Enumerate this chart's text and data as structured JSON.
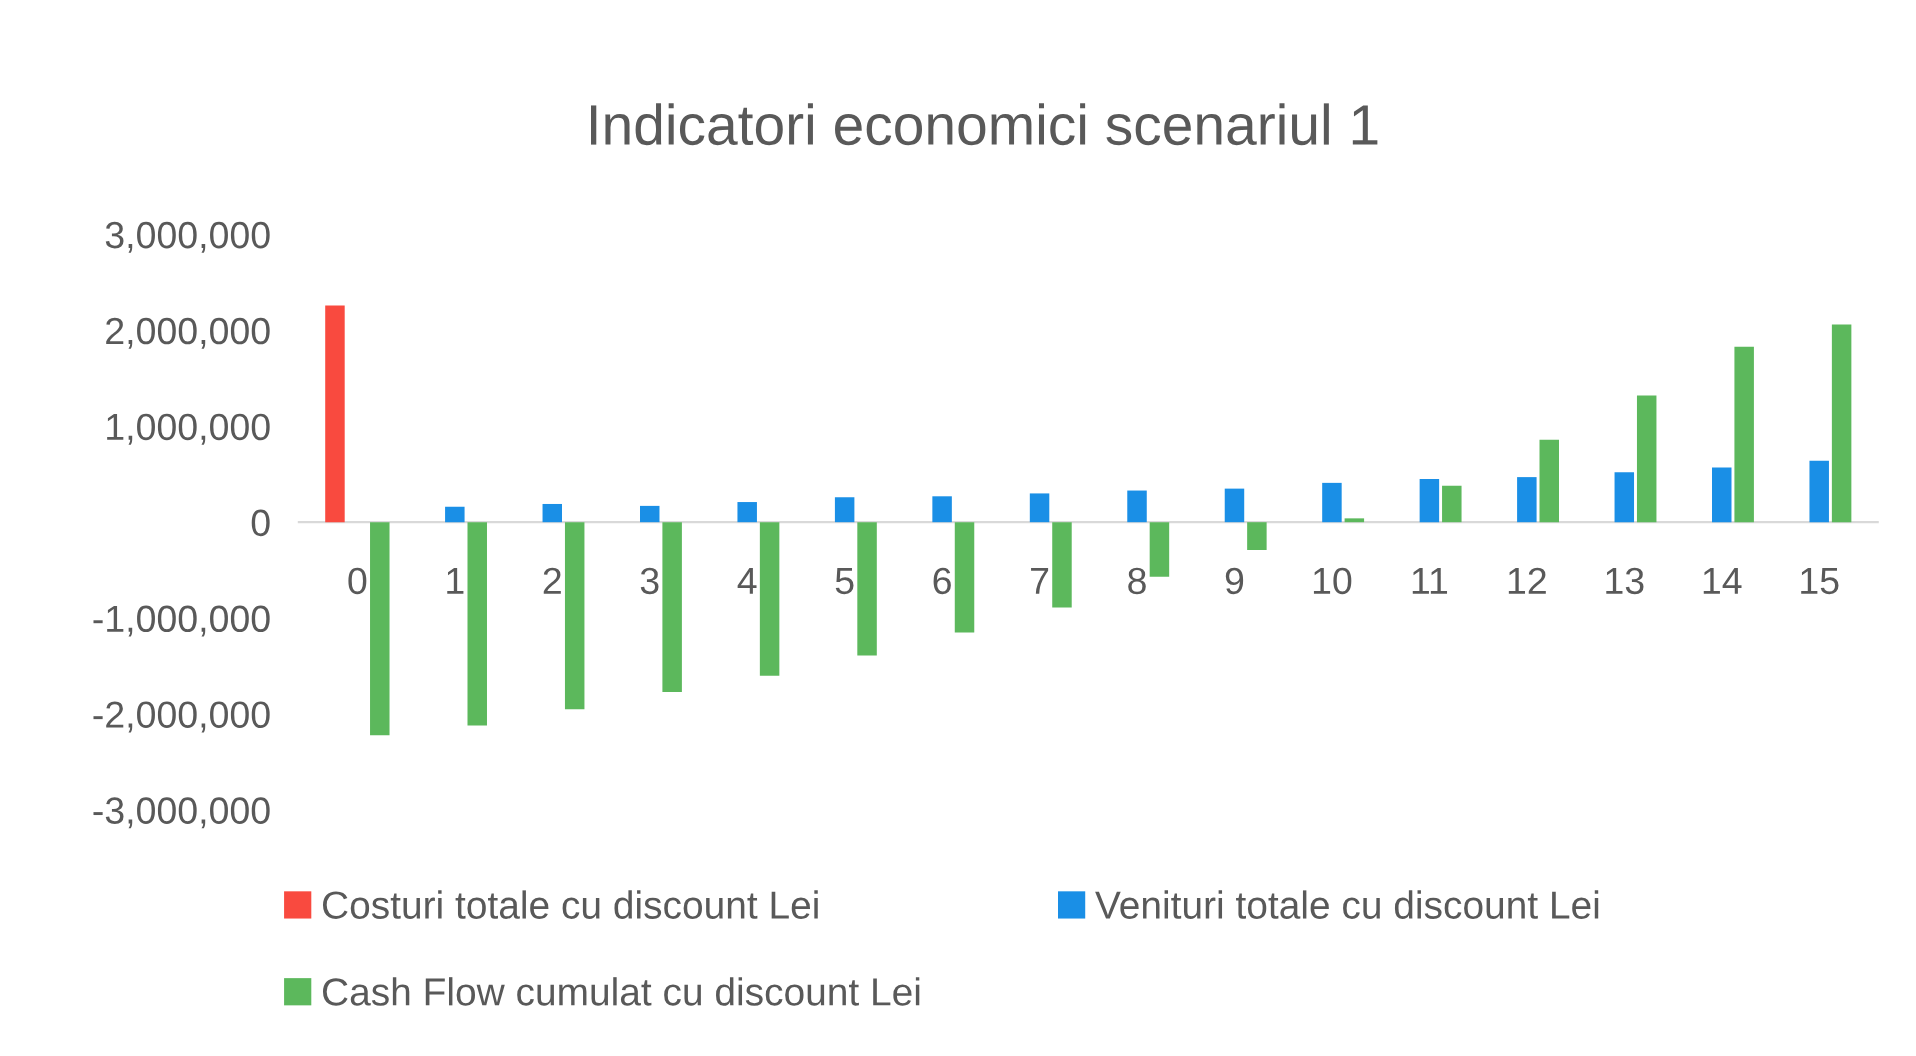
{
  "chart_data": {
    "type": "bar",
    "title": "Indicatori economici scenariul 1",
    "categories": [
      "0",
      "1",
      "2",
      "3",
      "4",
      "5",
      "6",
      "7",
      "8",
      "9",
      "10",
      "11",
      "12",
      "13",
      "14",
      "15"
    ],
    "series": [
      {
        "name": "Costuri totale cu discount Lei",
        "color": "#f94a3f",
        "values": [
          2260000,
          0,
          0,
          0,
          0,
          0,
          0,
          0,
          0,
          0,
          0,
          0,
          0,
          0,
          0,
          0
        ]
      },
      {
        "name": "Venituri totale cu discount Lei",
        "color": "#1a8fe6",
        "values": [
          0,
          160000,
          190000,
          170000,
          210000,
          260000,
          270000,
          300000,
          330000,
          350000,
          410000,
          450000,
          470000,
          520000,
          570000,
          640000
        ]
      },
      {
        "name": "Cash Flow cumulat cu discount Lei",
        "color": "#5cb85c",
        "values": [
          -2220000,
          -2120000,
          -1950000,
          -1770000,
          -1600000,
          -1390000,
          -1150000,
          -890000,
          -570000,
          -290000,
          40000,
          380000,
          860000,
          1320000,
          1830000,
          2060000
        ]
      }
    ],
    "ylim": [
      -3000000,
      3000000
    ],
    "yticks": [
      {
        "value": -3000000,
        "label": "-3,000,000"
      },
      {
        "value": -2000000,
        "label": "-2,000,000"
      },
      {
        "value": -1000000,
        "label": "-1,000,000"
      },
      0,
      {
        "value": 1000000,
        "label": "1,000,000"
      },
      {
        "value": 2000000,
        "label": "2,000,000"
      },
      {
        "value": 3000000,
        "label": "3,000,000"
      }
    ],
    "legend": "bottom",
    "grid": false
  }
}
